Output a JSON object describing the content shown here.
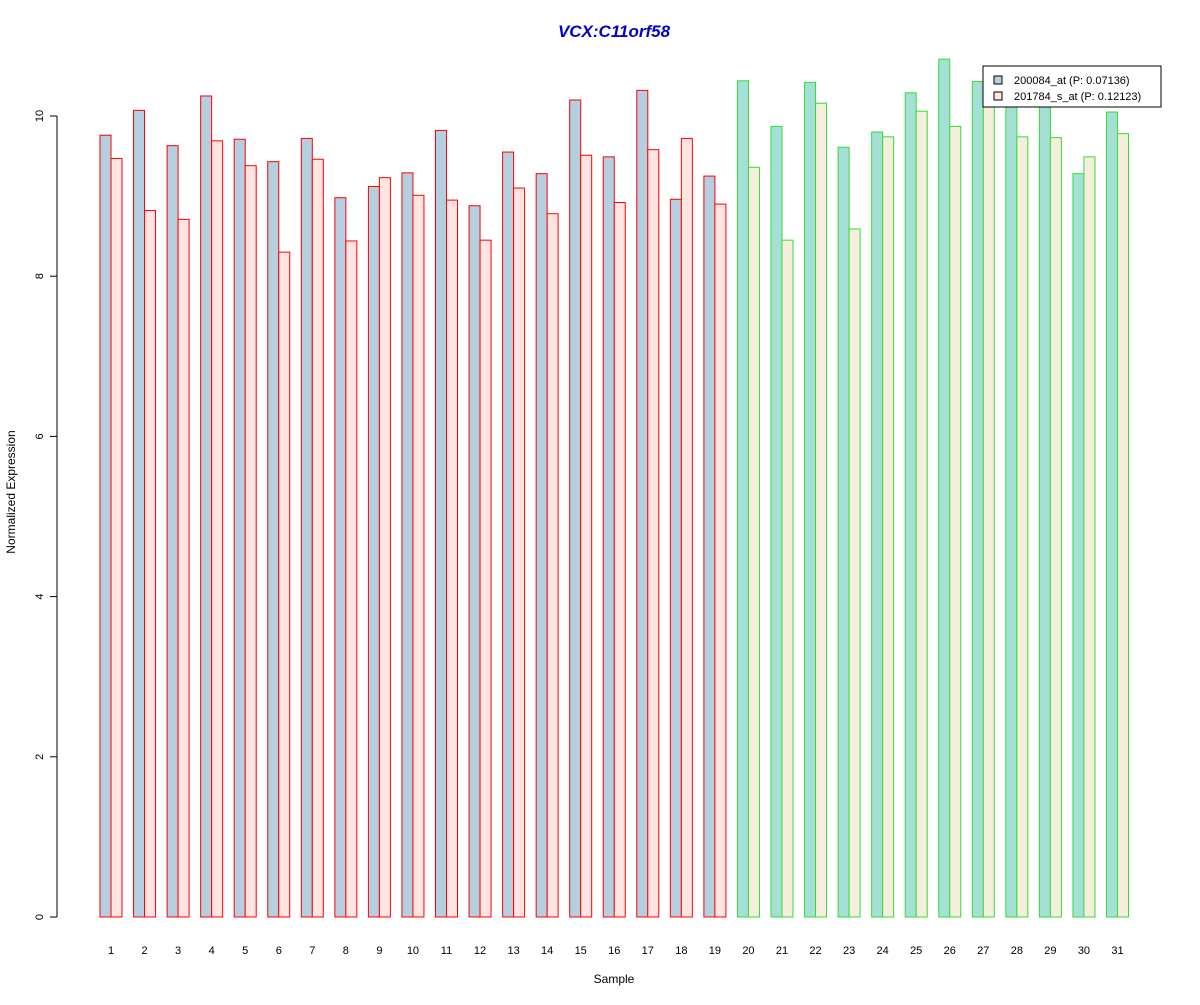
{
  "chart_data": {
    "type": "bar",
    "title": "VCX:C11orf58",
    "xlabel": "Sample",
    "ylabel": "Normalized Expression",
    "ylim": [
      0,
      10.7
    ],
    "yticks": [
      0,
      2,
      4,
      6,
      8,
      10
    ],
    "categories": [
      "1",
      "2",
      "3",
      "4",
      "5",
      "6",
      "7",
      "8",
      "9",
      "10",
      "11",
      "12",
      "13",
      "14",
      "15",
      "16",
      "17",
      "18",
      "19",
      "20",
      "21",
      "22",
      "23",
      "24",
      "25",
      "26",
      "27",
      "28",
      "29",
      "30",
      "31"
    ],
    "group_split_after": 19,
    "legend_position": "top-right",
    "series": [
      {
        "name": "200084_at (P: 0.07136)",
        "values": [
          9.76,
          10.07,
          9.63,
          10.25,
          9.71,
          9.43,
          9.72,
          8.98,
          9.12,
          9.29,
          9.82,
          8.88,
          9.55,
          9.28,
          10.2,
          9.49,
          10.32,
          8.96,
          9.25,
          10.44,
          9.87,
          10.42,
          9.61,
          9.8,
          10.29,
          10.71,
          10.43,
          10.44,
          10.4,
          9.28,
          10.05
        ]
      },
      {
        "name": "201784_s_at (P: 0.12123)",
        "values": [
          9.47,
          8.82,
          8.71,
          9.69,
          9.38,
          8.3,
          9.46,
          8.44,
          9.23,
          9.01,
          8.95,
          8.45,
          9.1,
          8.78,
          9.51,
          8.92,
          9.58,
          9.72,
          8.9,
          9.36,
          8.45,
          10.16,
          8.59,
          9.74,
          10.06,
          9.87,
          10.43,
          9.74,
          9.73,
          9.49,
          9.78
        ]
      }
    ],
    "colors": {
      "series1_fill_group1": "#b4cfe0",
      "series2_fill_group1": "#ffe4e1",
      "series1_fill_group2": "#a5e0d6",
      "series2_fill_group2": "#f6eedc",
      "border_group1": "#ff0000",
      "border_group2": "#33dd33",
      "title": "#0000cc"
    }
  }
}
